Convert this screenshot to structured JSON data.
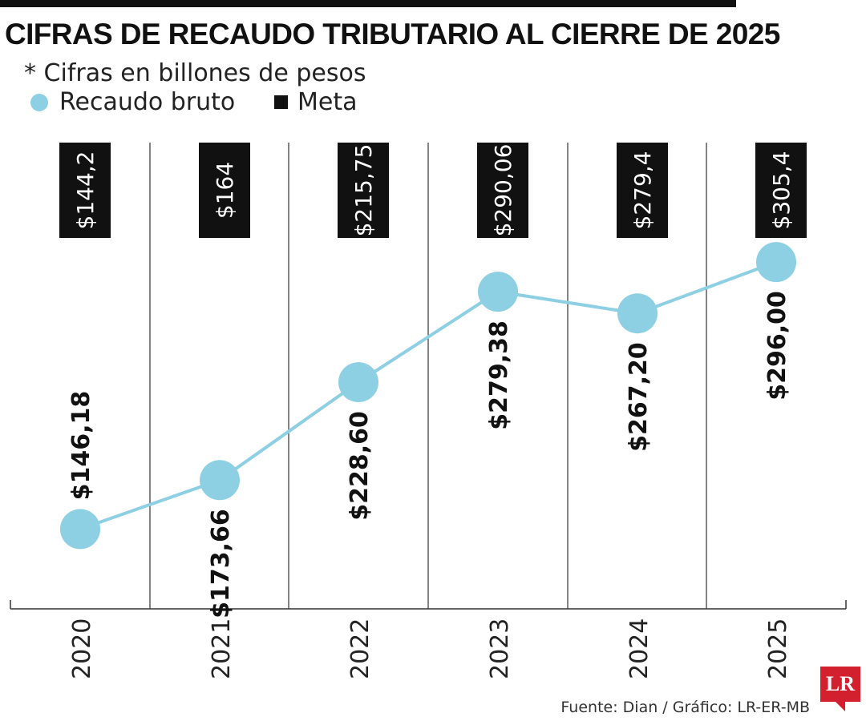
{
  "title": "CIFRAS DE RECAUDO TRIBUTARIO AL CIERRE DE 2025",
  "subtitle": "* Cifras en billones de pesos",
  "legend": [
    {
      "label": "Recaudo bruto",
      "color": "#8dcfe3",
      "marker": "circle"
    },
    {
      "label": "Meta",
      "color": "#111111",
      "marker": "square"
    }
  ],
  "source": "Fuente: Dian / Gráfico: LR-ER-MB",
  "logo_text": "LR",
  "colors": {
    "line": "#8dcfe3",
    "dot": "#8dcfe3",
    "meta_box": "#111111",
    "grid": "#333333"
  },
  "chart_data": {
    "type": "line",
    "title": "CIFRAS DE RECAUDO TRIBUTARIO AL CIERRE DE 2025",
    "subtitle": "* Cifras en billones de pesos",
    "categories": [
      "2020",
      "2021",
      "2022",
      "2023",
      "2024",
      "2025"
    ],
    "series": [
      {
        "name": "Recaudo bruto",
        "values": [
          146.18,
          173.66,
          228.6,
          279.38,
          267.2,
          296.0
        ],
        "labels": [
          "$146,18",
          "$173,66",
          "$228,60",
          "$279,38",
          "$267,20",
          "$296,00"
        ]
      },
      {
        "name": "Meta",
        "values": [
          144.2,
          164,
          215.75,
          290.06,
          279.4,
          305.4
        ],
        "labels": [
          "$144,2",
          "$164",
          "$215,75",
          "$290,06",
          "$279,4",
          "$305,4"
        ]
      }
    ],
    "grid": "vertical separators between years",
    "legend_position": "top-left"
  }
}
